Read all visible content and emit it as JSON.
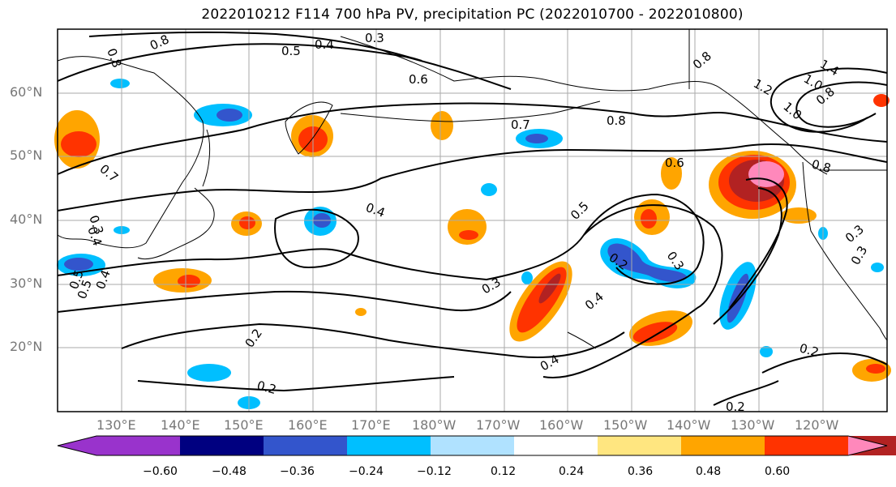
{
  "map": {
    "title": "2022010212 F114 700 hPa PV, precipitation PC (2022010700 - 2022010800)",
    "lat_labels": [
      "60°N",
      "50°N",
      "40°N",
      "30°N",
      "20°N"
    ],
    "lon_labels": [
      "130°E",
      "140°E",
      "150°E",
      "160°E",
      "170°E",
      "180°W",
      "170°W",
      "160°W",
      "150°W",
      "140°W",
      "130°W",
      "120°W"
    ],
    "contour_labels": [
      "0.8",
      "0.5",
      "0.4",
      "0.3",
      "0.6",
      "0.7",
      "0.8",
      "0.7",
      "0.6",
      "0.8",
      "1.4",
      "1.2",
      "1.0",
      "1.0",
      "0.8",
      "0.4",
      "0.5",
      "0.2",
      "0.3",
      "0.3",
      "0.4",
      "0.4",
      "0.2",
      "0.2",
      "0.2",
      "0.2",
      "0.8",
      "0.4",
      "0.5",
      "0.3",
      "0.3",
      "0.4",
      "0.5",
      "0.3",
      "0.8"
    ],
    "colorbar": {
      "ticks": [
        "−0.60",
        "−0.48",
        "−0.36",
        "−0.24",
        "−0.12",
        "0.12",
        "0.24",
        "0.36",
        "0.48",
        "0.60"
      ],
      "colors": [
        "#9933cc",
        "#000080",
        "#3355cc",
        "#00bfff",
        "#b0e2ff",
        "#ffffff",
        "#ffe680",
        "#ffa500",
        "#ff3300",
        "#b22222",
        "#ff88bb"
      ]
    }
  }
}
